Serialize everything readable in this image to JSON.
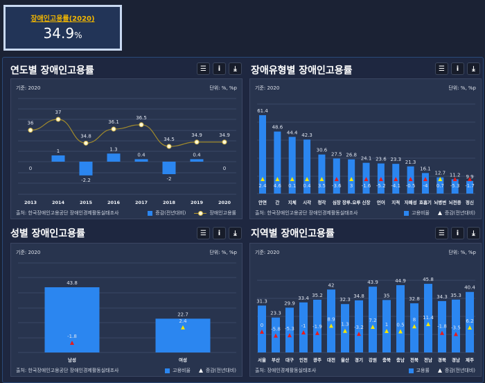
{
  "kpi": {
    "label": "장애인고용률(2020)",
    "value": "34.9",
    "unit": "%"
  },
  "buttons": {
    "list": "☰",
    "info": "i",
    "download": "⤓"
  },
  "common": {
    "base": "기준: 2020",
    "unit": "단위: %, %p"
  },
  "colors": {
    "bar": "#2b86f0",
    "line": "#a08a2c",
    "up": "#f5e600",
    "down": "#e81a1a",
    "label": "#dfe4ee"
  },
  "chart_data": [
    {
      "id": "year",
      "type": "bar+line",
      "title": "연도별 장애인고용률",
      "source": "출처: 한국장애인고용공단 장애인경제활동실태조사",
      "legend": [
        "증감(전년대비)",
        "장애인고용률"
      ],
      "categories": [
        "2013",
        "2014",
        "2015",
        "2016",
        "2017",
        "2018",
        "2019",
        "2020"
      ],
      "bar_values": [
        0,
        1,
        -2.2,
        1.3,
        0.4,
        -2,
        0.4,
        0
      ],
      "line_values": [
        36,
        37,
        34.8,
        36.1,
        36.5,
        34.5,
        34.9,
        34.9
      ]
    },
    {
      "id": "type",
      "type": "bar+marker",
      "title": "장애유형별 장애인고용률",
      "source": "출처: 한국장애인고용공단 장애인경제활동실태조사",
      "legend": [
        "고용비율",
        "증감(전년대비)"
      ],
      "categories": [
        "안면",
        "간",
        "지체",
        "시각",
        "청각",
        "심장",
        "장루.요루",
        "신장",
        "언어",
        "지적",
        "자폐성",
        "호흡기",
        "뇌병변",
        "뇌전증",
        "정신"
      ],
      "bar_values": [
        61.4,
        48.6,
        44.4,
        42.3,
        30.6,
        27.5,
        26.8,
        24.1,
        23.6,
        23.3,
        21.3,
        16.1,
        12.7,
        11.2,
        9.9
      ],
      "marker_values": [
        2.4,
        4.6,
        0.1,
        0.4,
        3.5,
        -3.6,
        3,
        -1.6,
        -5.2,
        -4.1,
        -0.5,
        -4,
        0.7,
        -5.3,
        -1.7
      ]
    },
    {
      "id": "gender",
      "type": "bar+marker",
      "title": "성별 장애인고용률",
      "source": "출처: 한국장애인고용공단 장애인경제활동실태조사",
      "legend": [
        "고용비율",
        "증감(전년대비)"
      ],
      "categories": [
        "남성",
        "여성"
      ],
      "bar_values": [
        43.8,
        22.7
      ],
      "marker_values": [
        -1.8,
        2.4
      ]
    },
    {
      "id": "region",
      "type": "bar+marker",
      "title": "지역별 장애인고용률",
      "source": "출처: 장애인경제활동실태조사",
      "legend": [
        "고용률",
        "증감(전년대비)"
      ],
      "categories": [
        "서울",
        "부산",
        "대구",
        "인천",
        "광주",
        "대전",
        "울산",
        "경기",
        "강원",
        "충북",
        "충남",
        "전북",
        "전남",
        "경북",
        "경남",
        "제주"
      ],
      "bar_values": [
        31.3,
        23.3,
        29.9,
        33.4,
        35.2,
        42,
        32.3,
        34.8,
        43.9,
        35,
        44.9,
        32.8,
        45.8,
        34.3,
        35.3,
        40.4
      ],
      "marker_values": [
        0,
        -5.8,
        -5.3,
        -1,
        -1.9,
        8.9,
        1.3,
        -3.2,
        7.2,
        1,
        0.5,
        8,
        11.4,
        -1.8,
        -3.5,
        6.2
      ]
    }
  ]
}
